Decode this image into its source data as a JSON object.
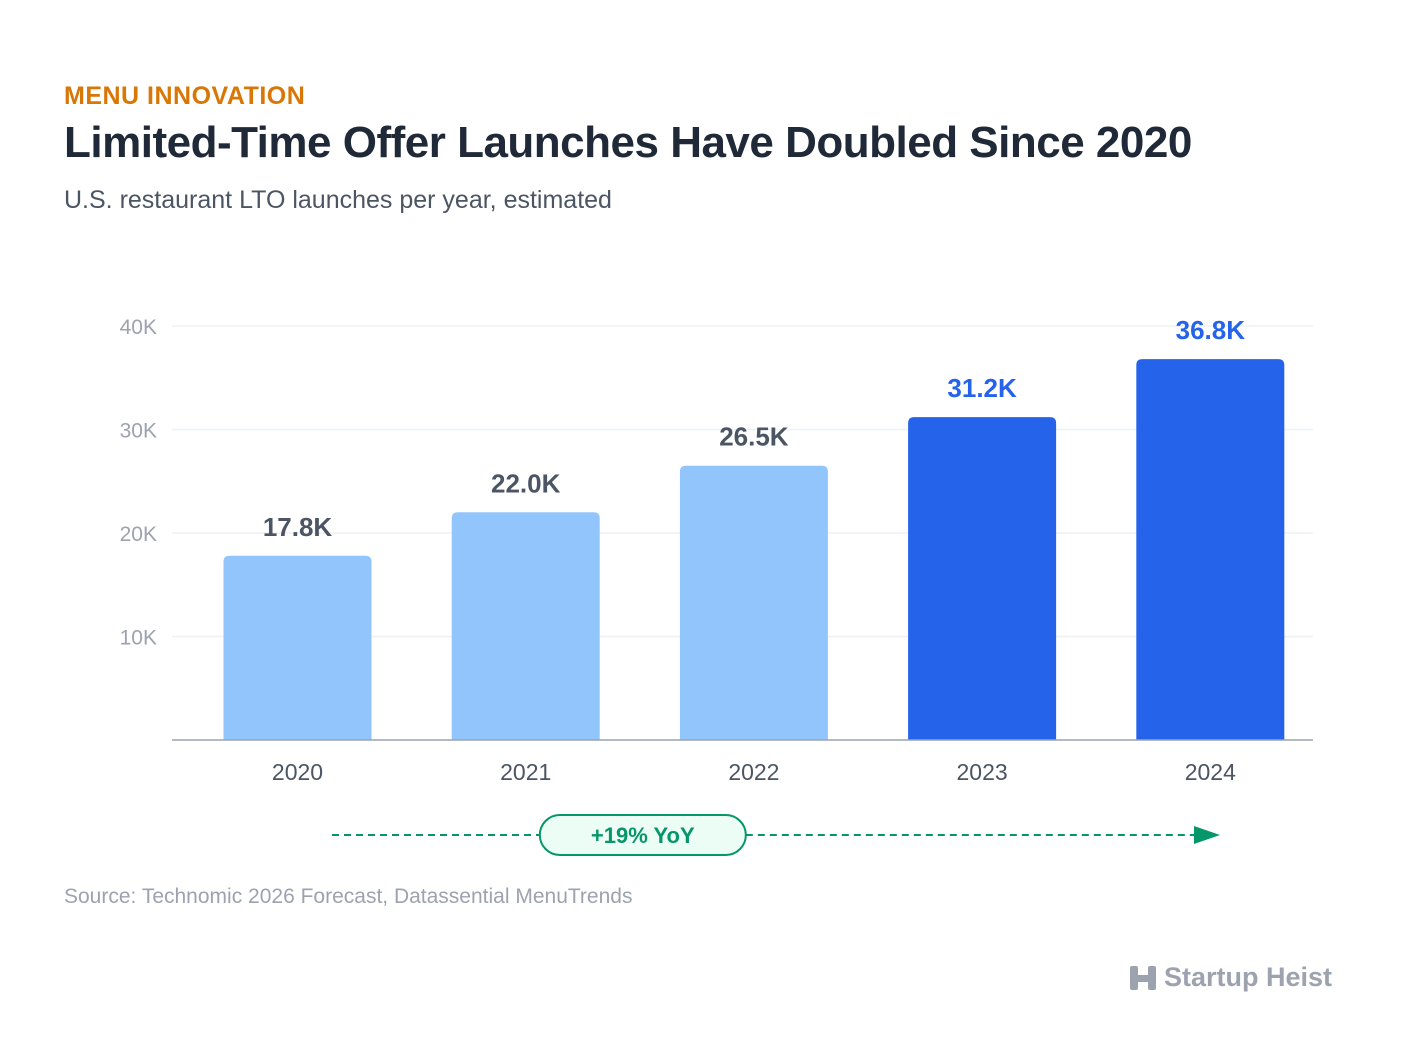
{
  "header": {
    "kicker": "MENU INNOVATION",
    "title": "Limited-Time Offer Launches Have Doubled Since 2020",
    "subtitle": "U.S. restaurant LTO launches per year, estimated"
  },
  "chart_data": {
    "type": "bar",
    "categories": [
      "2020",
      "2021",
      "2022",
      "2023",
      "2024"
    ],
    "values": [
      17800,
      22000,
      26500,
      31200,
      36800
    ],
    "data_labels": [
      "17.8K",
      "22.0K",
      "26.5K",
      "31.2K",
      "36.8K"
    ],
    "ylim": [
      0,
      40000
    ],
    "yticks": [
      10000,
      20000,
      30000,
      40000
    ],
    "ytick_labels": [
      "10K",
      "20K",
      "30K",
      "40K"
    ],
    "grid": true,
    "highlighted": [
      "2023",
      "2024"
    ],
    "colors": {
      "bar": "#93c5fd",
      "bar_highlight": "#2563eb",
      "label": "#4b5563",
      "label_highlight": "#2563eb",
      "axis_text": "#9ca3af",
      "year_text": "#4b5563",
      "trend": "#059669",
      "trend_fill": "#ecfdf5"
    },
    "annotation": {
      "text": "+19% YoY"
    }
  },
  "footer": {
    "source": "Source: Technomic 2026 Forecast, Datassential MenuTrends",
    "brand": "Startup Heist",
    "brand_icon": "building-icon"
  }
}
